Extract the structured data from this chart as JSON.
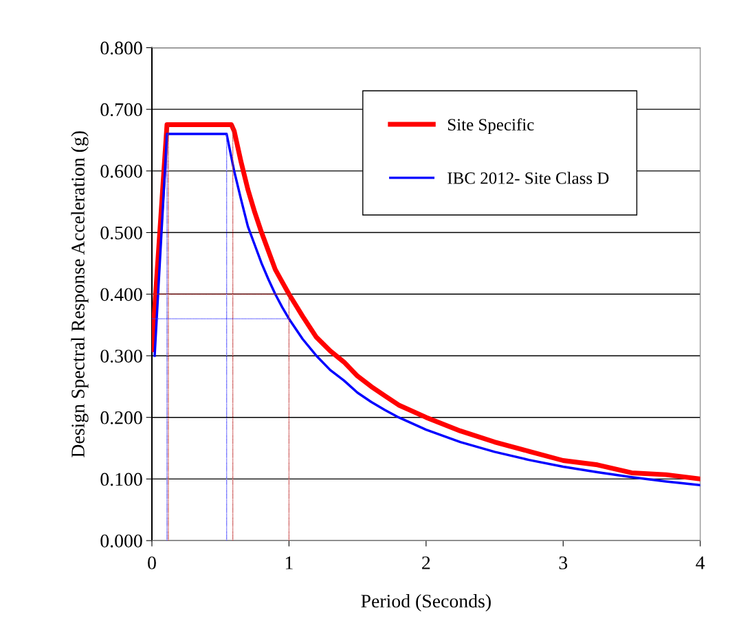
{
  "chart_data": {
    "type": "line",
    "xlabel": "Period (Seconds)",
    "ylabel": "Design Spectral Response Acceleration (g)",
    "xlim": [
      0,
      4
    ],
    "xticks": [
      0,
      1,
      2,
      3,
      4
    ],
    "ylim": [
      0,
      0.8
    ],
    "yticks": [
      {
        "value": 0,
        "label": "0.000"
      },
      {
        "value": 0.1,
        "label": "0.100"
      },
      {
        "value": 0.2,
        "label": "0.200"
      },
      {
        "value": 0.3,
        "label": "0.300"
      },
      {
        "value": 0.4,
        "label": "0.400"
      },
      {
        "value": 0.5,
        "label": "0.500"
      },
      {
        "value": 0.6,
        "label": "0.600"
      },
      {
        "value": 0.7,
        "label": "0.700"
      },
      {
        "value": 0.8,
        "label": "0.800"
      }
    ],
    "grid": "y",
    "legend": "top right",
    "marker": "none",
    "series": [
      {
        "name": "Site Specific",
        "color": "#ff0000",
        "line_style": "solid",
        "x": [
          0,
          0.11,
          0.58,
          0.6,
          0.65,
          0.7,
          0.75,
          0.8,
          0.85,
          0.9,
          0.95,
          1.0,
          1.1,
          1.2,
          1.3,
          1.4,
          1.5,
          1.6,
          1.7,
          1.8,
          2.0,
          2.25,
          2.5,
          2.75,
          3.0,
          3.25,
          3.5,
          3.75,
          4.0
        ],
        "values": [
          0.31,
          0.675,
          0.675,
          0.665,
          0.615,
          0.57,
          0.533,
          0.5,
          0.47,
          0.44,
          0.42,
          0.4,
          0.364,
          0.33,
          0.308,
          0.29,
          0.267,
          0.25,
          0.235,
          0.22,
          0.2,
          0.178,
          0.16,
          0.145,
          0.13,
          0.123,
          0.11,
          0.107,
          0.1
        ]
      },
      {
        "name": "IBC 2012- Site Class D",
        "color": "#0000ff",
        "line_style": "solid",
        "x": [
          0.02,
          0.11,
          0.545,
          0.6,
          0.65,
          0.7,
          0.75,
          0.8,
          0.85,
          0.9,
          0.95,
          1.0,
          1.1,
          1.2,
          1.3,
          1.4,
          1.5,
          1.6,
          1.7,
          1.8,
          2.0,
          2.25,
          2.5,
          2.75,
          3.0,
          3.25,
          3.5,
          3.75,
          4.0
        ],
        "values": [
          0.3,
          0.66,
          0.66,
          0.6,
          0.554,
          0.51,
          0.48,
          0.45,
          0.424,
          0.4,
          0.379,
          0.36,
          0.327,
          0.3,
          0.277,
          0.26,
          0.24,
          0.225,
          0.212,
          0.2,
          0.18,
          0.16,
          0.144,
          0.131,
          0.12,
          0.111,
          0.103,
          0.096,
          0.09
        ]
      },
      {
        "color": "#c03030",
        "line_style": "dotted",
        "x": [
          0.12,
          0.12
        ],
        "values": [
          0,
          0.675
        ]
      },
      {
        "color": "#c03030",
        "line_style": "dotted",
        "x": [
          0.59,
          0.59
        ],
        "values": [
          0,
          0.675
        ]
      },
      {
        "color": "#c03030",
        "line_style": "dotted",
        "x": [
          1.0,
          1.0
        ],
        "values": [
          0,
          0.4
        ]
      },
      {
        "color": "#c03030",
        "line_style": "dotted",
        "x": [
          0,
          1.0
        ],
        "values": [
          0.4,
          0.4
        ]
      },
      {
        "color": "#4040ff",
        "line_style": "dotted",
        "x": [
          0.11,
          0.11
        ],
        "values": [
          0,
          0.66
        ]
      },
      {
        "color": "#4040ff",
        "line_style": "dotted",
        "x": [
          0.545,
          0.545
        ],
        "values": [
          0,
          0.66
        ]
      },
      {
        "color": "#4040ff",
        "line_style": "dotted",
        "x": [
          0,
          1.0
        ],
        "values": [
          0.36,
          0.36
        ]
      }
    ]
  }
}
